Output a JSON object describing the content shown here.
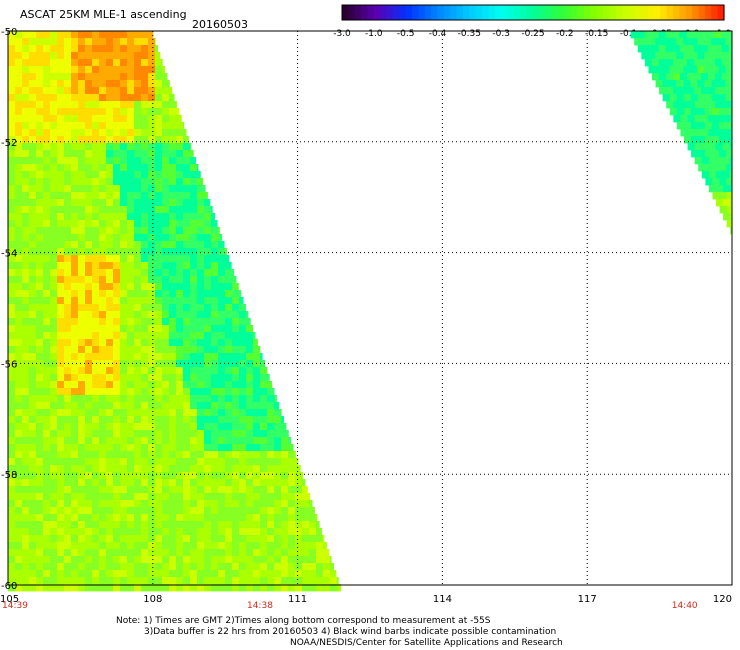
{
  "header": {
    "title": "ASCAT 25KM MLE-1 ascending",
    "date": "20160503"
  },
  "colorbar": {
    "labels": [
      "-3.0",
      "-1.0",
      "-0.5",
      "-0.4",
      "-0.35",
      "-0.3",
      "-0.25",
      "-0.2",
      "-0.15",
      "-0.1",
      "-0.05",
      "0.0",
      "1.0"
    ],
    "colors": [
      "#2a0030",
      "#5a00b4",
      "#0033ff",
      "#0088ff",
      "#00ccff",
      "#00ffee",
      "#00ff99",
      "#33ff33",
      "#88ff00",
      "#ccff00",
      "#ffee00",
      "#ff9900",
      "#ff2200"
    ]
  },
  "chart_data": {
    "type": "heatmap",
    "title": "ASCAT 25KM MLE-1 ascending",
    "x_ticks": [
      "105",
      "108",
      "111",
      "114",
      "117",
      "120"
    ],
    "y_ticks": [
      "-50",
      "-52",
      "-54",
      "-56",
      "-58",
      "-60"
    ],
    "xlim": [
      105,
      120
    ],
    "ylim": [
      -60,
      -50
    ],
    "grid": true,
    "time_labels": [
      {
        "text": "14:39",
        "lon": 105
      },
      {
        "text": "14:38",
        "lon": 110.2
      },
      {
        "text": "14:40",
        "lon": 119
      }
    ]
  },
  "notes": [
    "Note: 1) Times are GMT 2)Times along bottom correspond to measurement at -55S",
    "3)Data buffer is 22 hrs from 20160503 4) Black wind barbs indicate possible contamination",
    "NOAA/NESDIS/Center for Satellite Applications and Research"
  ]
}
